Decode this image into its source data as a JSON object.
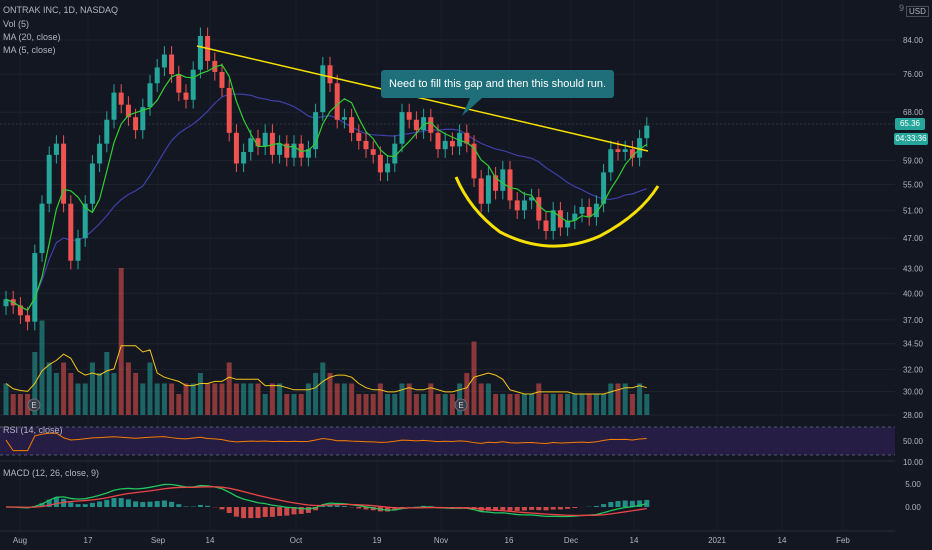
{
  "legend": {
    "title": "ONTRAK INC, 1D, NASDAQ",
    "volume": "Vol (5)",
    "ma1": "MA (20, close)",
    "ma2": "MA (5, close)",
    "rsi": "RSI (14, close)",
    "macd": "MACD (12, 26, close, 9)"
  },
  "axis": {
    "currency": "USD",
    "top_digit": "9",
    "price_ticks": [
      "84.00",
      "76.00",
      "68.00",
      "59.00",
      "55.00",
      "51.00",
      "47.00",
      "43.00",
      "40.00",
      "37.00",
      "34.50",
      "32.00",
      "30.00",
      "28.00"
    ],
    "rsi_ticks": [
      "50.00",
      "10.00"
    ],
    "macd_ticks": [
      "5.00",
      "0.00"
    ],
    "time_labels": [
      "Aug",
      "17",
      "Sep",
      "14",
      "Oct",
      "19",
      "Nov",
      "16",
      "Dec",
      "14",
      "2021",
      "14",
      "Feb"
    ]
  },
  "tags": {
    "last_price": "65.36",
    "countdown": "04:33:36"
  },
  "annotation": {
    "text": "Need to fill this gap and then this should run."
  },
  "earnings_marker": "E",
  "colors": {
    "up": "#26a69a",
    "down": "#ef5350",
    "ma5": "#32cd32",
    "ma20": "#3f3fa8",
    "trendline": "#f5e000",
    "rsi_line": "#f57c00",
    "macd_line": "#22c55e",
    "signal_line": "#ef4444",
    "volume_ma": "#f5c518"
  },
  "chart_data": {
    "type": "candlestick",
    "title": "ONTRAK INC, 1D, NASDAQ",
    "x_axis": [
      "Aug",
      "17",
      "Sep",
      "14",
      "Oct",
      "19",
      "Nov",
      "16",
      "Dec",
      "14",
      "2021",
      "14",
      "Feb"
    ],
    "y_scale": "log",
    "ylim": [
      27,
      90
    ],
    "close": [
      39.3,
      38.6,
      37.5,
      36.8,
      45.0,
      52.0,
      60.0,
      62.0,
      52.0,
      44.0,
      47.0,
      52.0,
      58.5,
      62.0,
      66.5,
      72.0,
      69.5,
      67.0,
      64.5,
      69.0,
      74.0,
      77.5,
      80.5,
      76.0,
      72.0,
      70.5,
      77.0,
      85.0,
      79.0,
      76.5,
      73.0,
      64.0,
      58.5,
      60.5,
      63.0,
      61.5,
      64.0,
      60.0,
      62.0,
      59.5,
      62.0,
      59.5,
      61.0,
      68.0,
      78.0,
      74.0,
      66.5,
      67.0,
      64.0,
      62.5,
      61.0,
      60.0,
      57.0,
      58.5,
      62.0,
      68.0,
      66.5,
      64.5,
      67.0,
      64.0,
      61.0,
      62.5,
      61.5,
      64.0,
      62.0,
      56.0,
      52.0,
      56.5,
      54.0,
      57.5,
      52.5,
      51.0,
      52.5,
      53.0,
      49.5,
      48.0,
      51.0,
      48.5,
      49.5,
      50.5,
      51.5,
      50.0,
      52.0,
      57.0,
      61.0,
      60.5,
      61.0,
      59.5,
      63.0,
      65.36
    ],
    "volume_relative": [
      0.3,
      0.2,
      0.2,
      0.2,
      0.6,
      0.9,
      0.5,
      0.4,
      0.5,
      0.4,
      0.3,
      0.3,
      0.5,
      0.4,
      0.6,
      0.4,
      1.4,
      0.5,
      0.4,
      0.3,
      0.5,
      0.3,
      0.3,
      0.3,
      0.2,
      0.3,
      0.3,
      0.4,
      0.3,
      0.3,
      0.3,
      0.5,
      0.3,
      0.3,
      0.3,
      0.3,
      0.2,
      0.3,
      0.3,
      0.2,
      0.2,
      0.2,
      0.3,
      0.4,
      0.5,
      0.4,
      0.3,
      0.3,
      0.3,
      0.2,
      0.2,
      0.2,
      0.3,
      0.2,
      0.2,
      0.3,
      0.3,
      0.2,
      0.2,
      0.3,
      0.2,
      0.2,
      0.2,
      0.3,
      0.4,
      0.7,
      0.3,
      0.3,
      0.2,
      0.2,
      0.2,
      0.2,
      0.2,
      0.2,
      0.3,
      0.2,
      0.2,
      0.2,
      0.2,
      0.2,
      0.2,
      0.2,
      0.2,
      0.2,
      0.3,
      0.3,
      0.3,
      0.2,
      0.3,
      0.2
    ],
    "rsi_value_last": 59,
    "indicators": [
      "Vol (5)",
      "MA (20, close)",
      "MA (5, close)",
      "RSI (14, close)",
      "MACD (12, 26, close, 9)"
    ]
  }
}
